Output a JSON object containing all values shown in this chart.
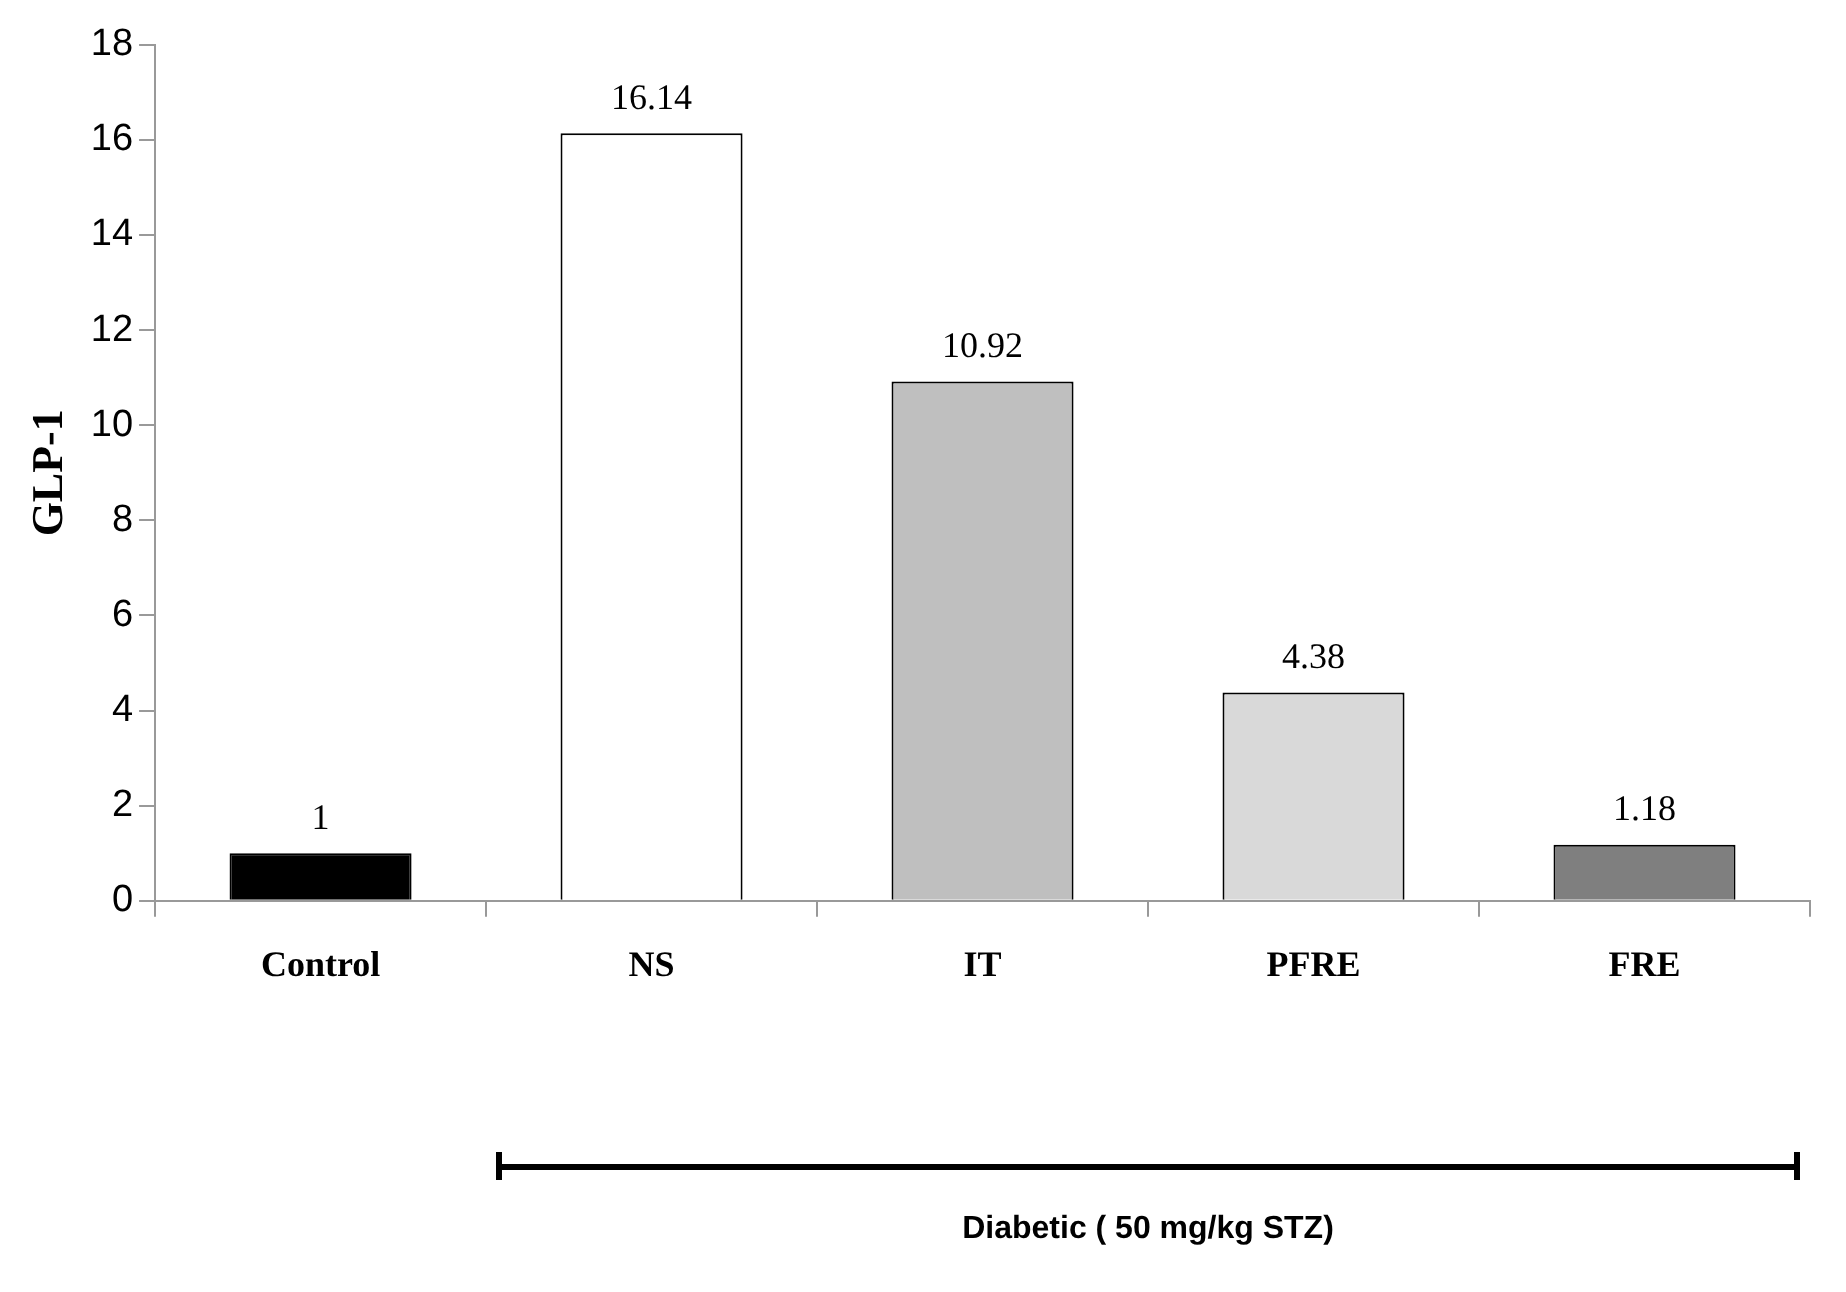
{
  "chart_data": {
    "type": "bar",
    "ylabel": "GLP-1",
    "categories": [
      "Control",
      "NS",
      "IT",
      "PFRE",
      "FRE"
    ],
    "values": [
      1,
      16.14,
      10.92,
      4.38,
      1.18
    ],
    "colors": [
      "#000000",
      "#ffffff",
      "#bfbfbf",
      "#d9d9d9",
      "#7f7f7f"
    ],
    "ylim": [
      0,
      18
    ],
    "yticks": [
      0,
      2,
      4,
      6,
      8,
      10,
      12,
      14,
      16,
      18
    ],
    "grid": false,
    "legend": false,
    "data_labels": true,
    "annotations": [
      "Diabetic ( 50 mg/kg STZ)"
    ]
  }
}
